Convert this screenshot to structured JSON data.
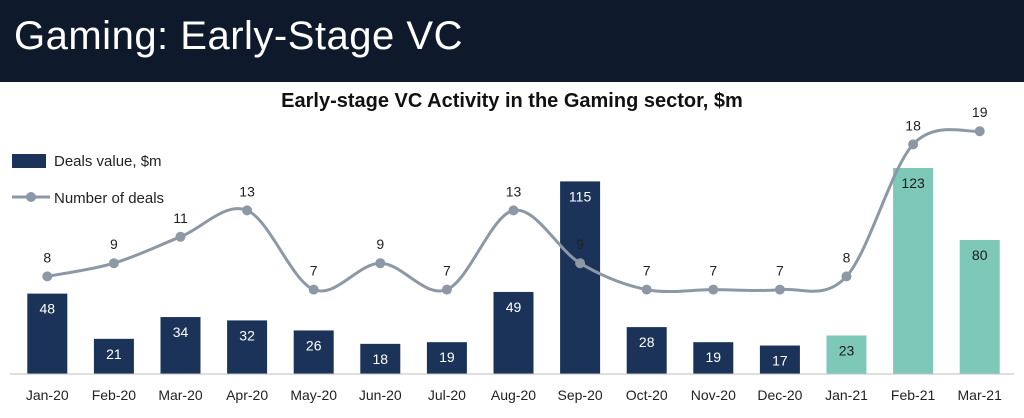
{
  "header": {
    "title": "Gaming: Early-Stage VC"
  },
  "colors": {
    "header_bg": "#0e1a2b",
    "bar_2020": "#1b3358",
    "bar_2021": "#7ec8ba",
    "line": "#8c98a6"
  },
  "chart_data": {
    "type": "bar",
    "title": "Early-stage VC Activity in the Gaming sector, $m",
    "xlabel": "",
    "ylabel": "",
    "categories": [
      "Jan-20",
      "Feb-20",
      "Mar-20",
      "Apr-20",
      "May-20",
      "Jun-20",
      "Jul-20",
      "Aug-20",
      "Sep-20",
      "Oct-20",
      "Nov-20",
      "Dec-20",
      "Jan-21",
      "Feb-21",
      "Mar-21"
    ],
    "series": [
      {
        "name": "Deals value, $m",
        "type": "bar",
        "values": [
          48,
          21,
          34,
          32,
          26,
          18,
          19,
          49,
          115,
          28,
          19,
          17,
          23,
          123,
          80
        ]
      },
      {
        "name": "Number of deals",
        "type": "line",
        "values": [
          8,
          9,
          11,
          13,
          7,
          9,
          7,
          13,
          9,
          7,
          7,
          7,
          8,
          18,
          19
        ]
      }
    ],
    "legend_position": "top-left",
    "grid": false
  }
}
